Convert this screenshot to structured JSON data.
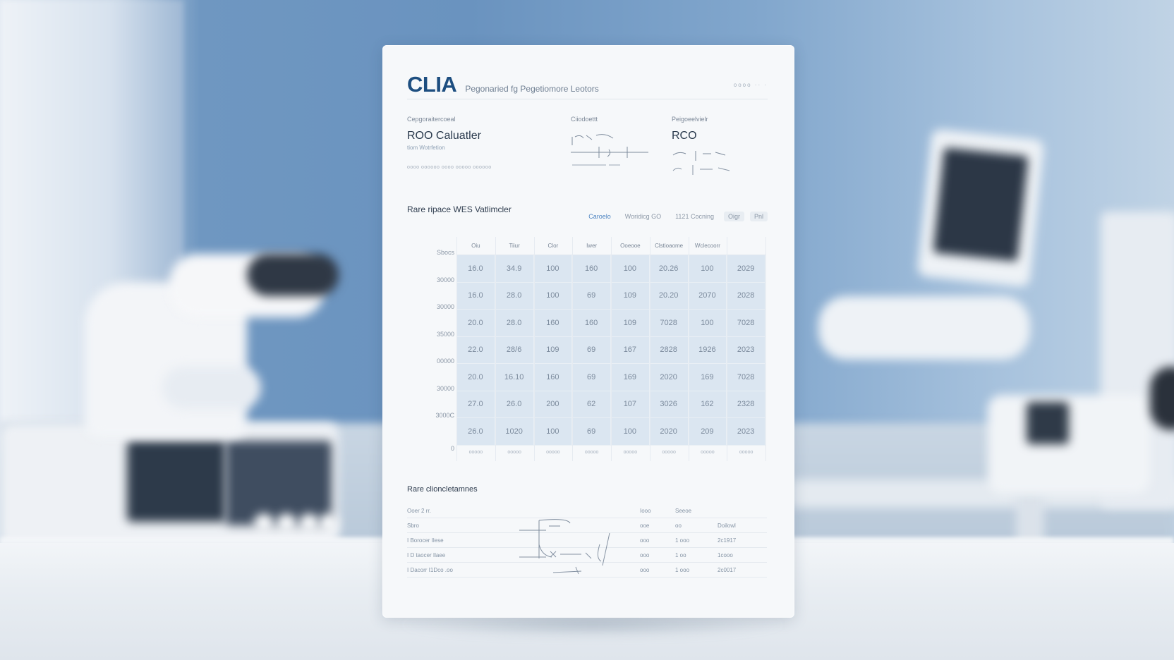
{
  "document": {
    "logo": "CLIA",
    "subtitle": "Pegonaried fg Pegetiomore Leotors",
    "header_right": "oooo ·· ·",
    "columns": [
      {
        "label": "Cepgoraitercoeal",
        "title": "ROO  Caluatler",
        "sub": "tiom Wotrfetion",
        "tiny": "oooo   oooooo oooo   ooooo   oooooo"
      },
      {
        "label": "Ciiodoettt",
        "title": "",
        "sub": "",
        "tiny": ""
      },
      {
        "label": "Peigoeelvielr",
        "title": "RCO",
        "sub": "",
        "tiny": ""
      }
    ],
    "section_title": "Rare ripace WES Vatlimcler",
    "tabs": [
      "Caroelo",
      "Woridicg GO",
      "1121 Cocning",
      "Oigr",
      "Pnl"
    ],
    "second_section_title": "Rare clioncletamnes",
    "lower_table": {
      "header": [
        "Ooer 2 rr.",
        "Iooo",
        "Seeoe",
        ""
      ],
      "rows": [
        [
          "Sbro",
          "ooe",
          "oo",
          "Doilowl"
        ],
        [
          "I Borocer   Ilese",
          "ooo",
          "1 ooo",
          "2c1917"
        ],
        [
          "I D taocer   Ilaee",
          "ooo",
          "1 oo",
          "1cooo"
        ],
        [
          "I Dacorr   I1Dco .oo",
          "ooo",
          "1 ooo",
          "2c0017"
        ]
      ]
    }
  },
  "chart_data": {
    "type": "table",
    "title": "Rare ripace WES Vatlimcler",
    "columns": [
      "Oiu",
      "Tiiur",
      "Clor",
      "Iwer",
      "Ooeooe",
      "Clstioaome",
      "Wclecoorr",
      ""
    ],
    "y_ticks": [
      "Sbocs",
      "30000",
      "30000",
      "35000",
      "00000",
      "30000",
      "3000C",
      "0"
    ],
    "rows": [
      [
        "16.0",
        "34.9",
        "100",
        "160",
        "100",
        "20.26",
        "100",
        "2029"
      ],
      [
        "16.0",
        "28.0",
        "100",
        "69",
        "109",
        "20.20",
        "2070",
        "2028"
      ],
      [
        "20.0",
        "28.0",
        "160",
        "160",
        "109",
        "7028",
        "100",
        "7028"
      ],
      [
        "22.0",
        "28/6",
        "109",
        "69",
        "167",
        "2828",
        "1926",
        "2023"
      ],
      [
        "20.0",
        "16.10",
        "160",
        "69",
        "169",
        "2020",
        "169",
        "7028"
      ],
      [
        "27.0",
        "26.0",
        "200",
        "62",
        "107",
        "3026",
        "162",
        "2328"
      ],
      [
        "26.0",
        "1020",
        "100",
        "69",
        "100",
        "2020",
        "209",
        "2023"
      ]
    ],
    "footer": [
      "ooooo",
      "ooooo",
      "ooooo",
      "ooooo",
      "ooooo",
      "ooooo",
      "ooooo",
      "ooooo"
    ],
    "grid": true,
    "accent": "#1d4e80",
    "cell_fill": "#dbe6f1"
  }
}
